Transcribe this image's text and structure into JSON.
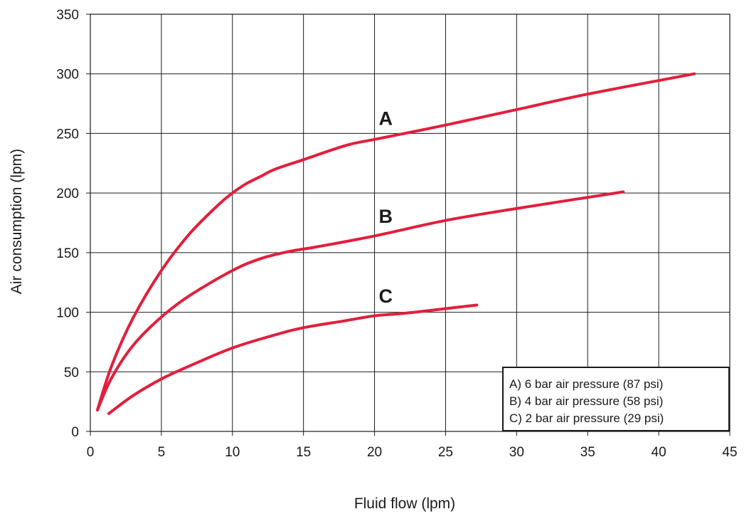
{
  "chart_data": {
    "type": "line",
    "title": "",
    "xlabel": "Fluid flow (lpm)",
    "ylabel": "Air consumption (lpm)",
    "xlim": [
      0,
      45
    ],
    "ylim": [
      0,
      350
    ],
    "x_ticks": [
      0,
      5,
      10,
      15,
      20,
      25,
      30,
      35,
      40,
      45
    ],
    "y_ticks": [
      0,
      50,
      100,
      150,
      200,
      250,
      300,
      350
    ],
    "grid": true,
    "line_color": "#e31e3c",
    "legend_placement": "bottom-right",
    "legend": [
      "A) 6 bar air pressure (87 psi)",
      "B) 4 bar air pressure (58 psi)",
      "C) 2 bar air pressure (29 psi)"
    ],
    "series": [
      {
        "name": "A",
        "x": [
          0.5,
          1.5,
          3,
          5,
          7,
          9,
          10,
          11,
          12,
          13,
          15,
          18,
          20,
          25,
          30,
          35,
          42.5
        ],
        "y": [
          18,
          55,
          95,
          135,
          166,
          190,
          200,
          208,
          214,
          220,
          228,
          240,
          245,
          257,
          270,
          283,
          300
        ]
      },
      {
        "name": "B",
        "x": [
          0.5,
          1.5,
          3,
          5,
          7,
          10,
          12,
          14,
          16,
          20,
          25,
          30,
          37.5
        ],
        "y": [
          18,
          45,
          72,
          96,
          114,
          135,
          145,
          151,
          155,
          164,
          177,
          187,
          201
        ]
      },
      {
        "name": "C",
        "x": [
          1.3,
          3,
          5,
          7,
          10,
          13,
          15,
          18,
          20,
          22,
          25,
          27.2
        ],
        "y": [
          15,
          30,
          44,
          55,
          70,
          81,
          87,
          93,
          97,
          99,
          103,
          106
        ]
      }
    ]
  }
}
